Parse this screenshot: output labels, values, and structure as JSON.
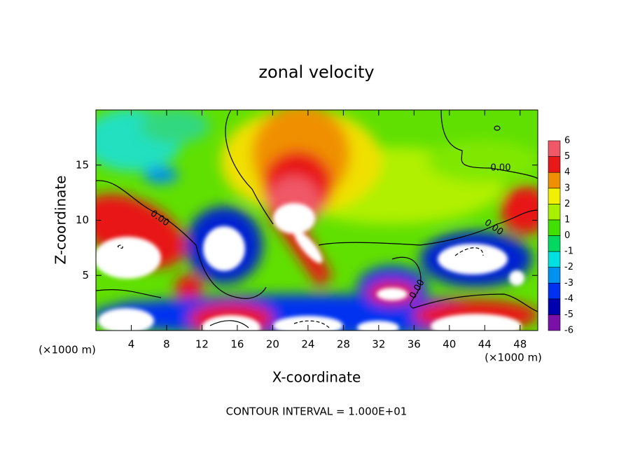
{
  "chart_data": {
    "type": "contour",
    "title": "zonal velocity",
    "x_label": "X-coordinate",
    "y_label": "Z-coordinate",
    "x_unit": "(×1000 m)",
    "y_unit": "(×1000 m)",
    "xlim": [
      0,
      50
    ],
    "xticks": [
      4,
      8,
      12,
      16,
      20,
      24,
      28,
      32,
      36,
      40,
      44,
      48
    ],
    "ylim": [
      0,
      20
    ],
    "yticks": [
      5,
      10,
      15
    ],
    "colorbar": {
      "levels": [
        -6,
        -5,
        -4,
        -3,
        -2,
        -1,
        0,
        1,
        2,
        3,
        4,
        5,
        6
      ],
      "colors": [
        "#7a10a8",
        "#0000b0",
        "#0030f0",
        "#0090f0",
        "#00e0e0",
        "#00d860",
        "#40e000",
        "#a8f000",
        "#f0f000",
        "#f09000",
        "#e81818",
        "#f05868",
        "#f0a0a8"
      ]
    },
    "contour_labels": [
      "0.00",
      "0.00",
      "0.00",
      "0.00"
    ],
    "footnote": "CONTOUR INTERVAL = 1.000E+01"
  }
}
